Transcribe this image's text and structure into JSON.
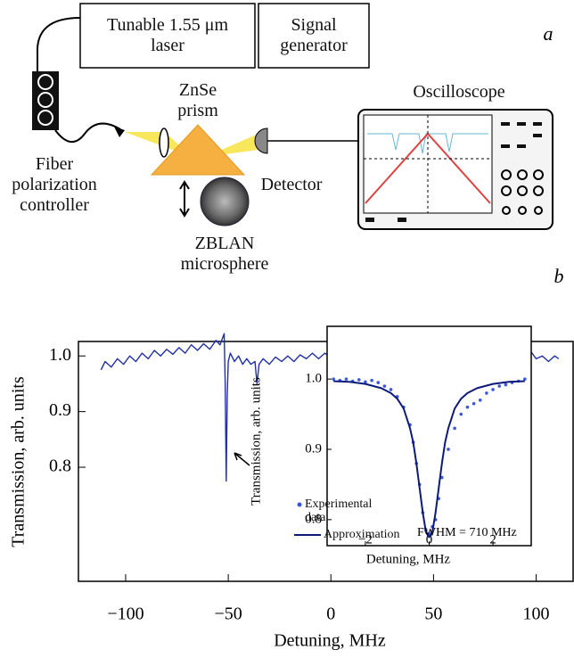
{
  "diagram": {
    "panel_label": "a",
    "laser": "Tunable 1.55 μm laser",
    "signal_generator": "Signal generator",
    "prism": "ZnSe prism",
    "oscilloscope": "Oscilloscope",
    "detector": "Detector",
    "controller": "Fiber polarization controller",
    "microsphere": "ZBLAN microsphere"
  },
  "chart_data": [
    {
      "type": "line",
      "panel_label": "b",
      "xlabel": "Detuning, MHz",
      "ylabel": "Transmission, arb. units",
      "xlim": [
        -123,
        118
      ],
      "ylim": [
        0.595,
        1.026
      ],
      "xticks": [
        {
          "value": -100,
          "label": "−100"
        },
        {
          "value": -50,
          "label": "−50"
        },
        0,
        50,
        100
      ],
      "yticks": [
        0.8,
        0.9,
        {
          "value": 1,
          "label": "1.0"
        }
      ],
      "x": [
        -112,
        -110,
        -107,
        -104,
        -101,
        -98,
        -95,
        -92,
        -89,
        -86,
        -83,
        -80,
        -77,
        -74,
        -71,
        -68,
        -65,
        -62,
        -59,
        -56,
        -54,
        -52,
        -51.5,
        -51,
        -50.5,
        -50,
        -49,
        -47,
        -45,
        -43,
        -41,
        -39,
        -37,
        -36,
        -35,
        -33,
        -30,
        -27,
        -24,
        -21,
        -18,
        -15,
        -12,
        -9,
        -6,
        -3,
        0,
        3,
        6,
        9,
        12,
        15,
        18,
        21,
        24,
        27,
        30,
        33,
        36,
        39,
        42,
        45,
        48,
        51,
        54,
        57,
        60,
        63,
        66,
        69,
        72,
        75,
        78,
        81,
        84,
        87,
        89,
        91,
        92,
        93,
        94,
        95,
        97,
        100,
        103,
        106,
        109,
        111
      ],
      "series": [
        {
          "color": "#2130a6",
          "values": [
            0.975,
            0.99,
            0.98,
            0.995,
            0.985,
            1.0,
            0.99,
            1.005,
            0.995,
            1.01,
            1.0,
            1.012,
            1.003,
            1.015,
            1.005,
            1.02,
            1.01,
            1.022,
            1.012,
            1.028,
            1.02,
            1.04,
            0.95,
            0.775,
            0.93,
            0.99,
            1.005,
            0.99,
            1.0,
            0.985,
            0.995,
            0.985,
            0.99,
            0.95,
            0.985,
            0.995,
            0.985,
            0.998,
            0.99,
            1.0,
            0.99,
            1.002,
            0.995,
            1.005,
            0.995,
            1.005,
            0.998,
            1.008,
            1.0,
            1.01,
            1.0,
            0.995,
            0.985,
            0.99,
            1.0,
            1.005,
            0.995,
            0.98,
            0.99,
            1.01,
            1.02,
            1.01,
            0.995,
            0.985,
            1.0,
            1.02,
            1.035,
            1.02,
            1.0,
            0.99,
            0.985,
            1.0,
            1.015,
            1.02,
            1.005,
            0.995,
            1.0,
            0.98,
            0.86,
            0.97,
            1.05,
            1.03,
            1.01,
            0.995,
            1.0,
            0.99,
            1.0,
            0.995
          ]
        }
      ]
    },
    {
      "type": "line",
      "xlabel": "Detuning, MHz",
      "ylabel": "Transmission, arb. units",
      "annotation": "FWHM = 710 MHz",
      "xlim": [
        -3.2,
        3.2
      ],
      "ylim": [
        0.763,
        1.075
      ],
      "xticks": [
        {
          "value": -2,
          "label": "−2"
        },
        0,
        2
      ],
      "yticks": [
        0.8,
        0.9,
        {
          "value": 1,
          "label": "1.0"
        }
      ],
      "series": [
        {
          "name": "Experimental data",
          "style": "markers",
          "color": "#3a56e0",
          "x": [
            -3,
            -2.8,
            -2.6,
            -2.4,
            -2.2,
            -2,
            -1.8,
            -1.6,
            -1.4,
            -1.2,
            -1,
            -0.8,
            -0.6,
            -0.5,
            -0.4,
            -0.3,
            -0.2,
            -0.1,
            0,
            0.1,
            0.2,
            0.3,
            0.4,
            0.6,
            0.8,
            1,
            1.2,
            1.4,
            1.6,
            1.8,
            2,
            2.2,
            2.4,
            2.6,
            2.8,
            3
          ],
          "values": [
            1.0,
            0.998,
            1.0,
            0.997,
            0.999,
            0.996,
            0.998,
            0.995,
            0.99,
            0.985,
            0.975,
            0.96,
            0.935,
            0.91,
            0.88,
            0.85,
            0.81,
            0.785,
            0.78,
            0.79,
            0.8,
            0.83,
            0.86,
            0.9,
            0.93,
            0.95,
            0.96,
            0.965,
            0.97,
            0.98,
            0.985,
            0.99,
            0.992,
            0.995,
            0.997,
            1.0
          ]
        },
        {
          "name": "Approximation",
          "style": "line",
          "color": "#0d1a7a",
          "x": [
            -3,
            -2.5,
            -2,
            -1.5,
            -1.2,
            -1,
            -0.8,
            -0.6,
            -0.5,
            -0.4,
            -0.3,
            -0.2,
            -0.1,
            0,
            0.1,
            0.2,
            0.3,
            0.4,
            0.5,
            0.6,
            0.8,
            1,
            1.2,
            1.5,
            2,
            2.5,
            3
          ],
          "values": [
            0.997,
            0.996,
            0.993,
            0.987,
            0.98,
            0.972,
            0.958,
            0.93,
            0.91,
            0.88,
            0.845,
            0.81,
            0.782,
            0.775,
            0.782,
            0.81,
            0.845,
            0.88,
            0.91,
            0.93,
            0.958,
            0.972,
            0.98,
            0.987,
            0.993,
            0.996,
            0.997
          ]
        }
      ]
    }
  ]
}
